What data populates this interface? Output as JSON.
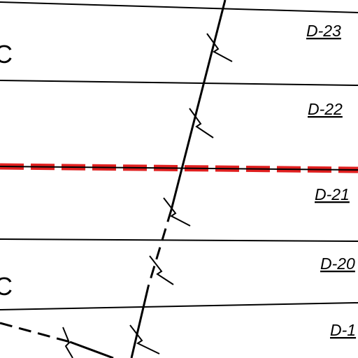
{
  "zone_labels": [
    "D-23",
    "D-22",
    "D-21",
    "D-20",
    "D-1"
  ],
  "side_labels": [
    "C",
    "C"
  ]
}
